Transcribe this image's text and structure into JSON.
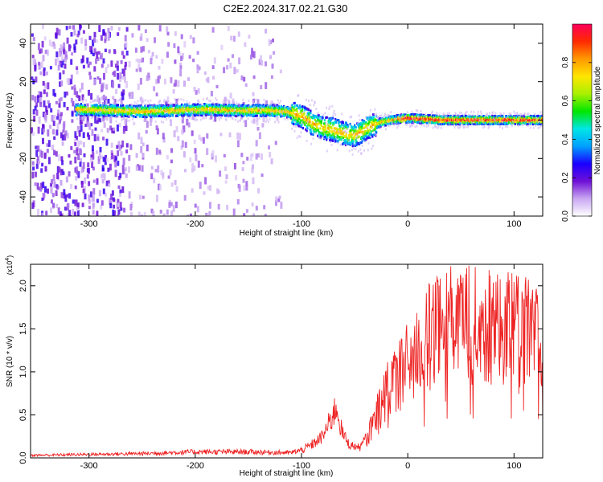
{
  "page_title": "C2E2.2024.317.02.21.G30",
  "chart_data": [
    {
      "type": "heatmap",
      "title": "C2E2.2024.317.02.21.G30",
      "xlabel": "Height of straight line (km)",
      "ylabel": "Frequency (Hz)",
      "xlim": [
        -355,
        127
      ],
      "ylim": [
        -50,
        50
      ],
      "x_ticks": [
        -300,
        -200,
        -100,
        0,
        100
      ],
      "y_ticks": [
        -40,
        -20,
        0,
        20,
        40
      ],
      "grid": false,
      "colorbar": {
        "label": "Normalized spectral amplitude",
        "range": [
          0,
          1
        ],
        "ticks": [
          "0.0",
          "0.2",
          "0.4",
          "0.6",
          "0.8"
        ],
        "colors": [
          "#ffffff",
          "#c9a7f2",
          "#6e0fd6",
          "#1a00ff",
          "#00a0ff",
          "#00e6e6",
          "#00e600",
          "#a8f000",
          "#ffe600",
          "#ff9a00",
          "#ff2a00",
          "#ff005a"
        ]
      },
      "ridge": [
        {
          "x": -313,
          "y": 5.5
        },
        {
          "x": -280,
          "y": 5
        },
        {
          "x": -250,
          "y": 4.5
        },
        {
          "x": -220,
          "y": 5
        },
        {
          "x": -190,
          "y": 5.5
        },
        {
          "x": -160,
          "y": 5
        },
        {
          "x": -130,
          "y": 5
        },
        {
          "x": -115,
          "y": 4.5
        },
        {
          "x": -100,
          "y": 2
        },
        {
          "x": -90,
          "y": -2
        },
        {
          "x": -80,
          "y": -4
        },
        {
          "x": -70,
          "y": -5
        },
        {
          "x": -60,
          "y": -7
        },
        {
          "x": -50,
          "y": -8
        },
        {
          "x": -42,
          "y": -5
        },
        {
          "x": -35,
          "y": -3
        },
        {
          "x": -25,
          "y": -1
        },
        {
          "x": -10,
          "y": 0.5
        },
        {
          "x": 0,
          "y": 1
        },
        {
          "x": 30,
          "y": 0
        },
        {
          "x": 60,
          "y": 0
        },
        {
          "x": 100,
          "y": 0
        },
        {
          "x": 127,
          "y": 0
        }
      ],
      "noise_region_x": [
        -355,
        -120
      ]
    },
    {
      "type": "line",
      "xlabel": "Height of straight line (km)",
      "ylabel": "SNR (10 * v/v)",
      "y_multiplier": "(x10",
      "y_multiplier_exp": "4",
      "xlim": [
        -355,
        127
      ],
      "ylim": [
        0,
        22500
      ],
      "x_ticks": [
        -300,
        -200,
        -100,
        0,
        100
      ],
      "y_ticks": [
        "0.0",
        "0.5",
        "1.0",
        "1.5",
        "2.0"
      ],
      "grid": false,
      "color": "#ee2222",
      "envelope": [
        {
          "x": -355,
          "y": 300
        },
        {
          "x": -250,
          "y": 500
        },
        {
          "x": -200,
          "y": 700
        },
        {
          "x": -150,
          "y": 700
        },
        {
          "x": -110,
          "y": 600
        },
        {
          "x": -100,
          "y": 900
        },
        {
          "x": -90,
          "y": 1500
        },
        {
          "x": -80,
          "y": 2500
        },
        {
          "x": -72,
          "y": 4500
        },
        {
          "x": -67,
          "y": 6000
        },
        {
          "x": -62,
          "y": 3000
        },
        {
          "x": -55,
          "y": 1500
        },
        {
          "x": -45,
          "y": 1200
        },
        {
          "x": -38,
          "y": 2500
        },
        {
          "x": -30,
          "y": 5000
        },
        {
          "x": -20,
          "y": 7500
        },
        {
          "x": -10,
          "y": 9500
        },
        {
          "x": 0,
          "y": 11000
        },
        {
          "x": 10,
          "y": 12500
        },
        {
          "x": 20,
          "y": 14000
        },
        {
          "x": 30,
          "y": 15000
        },
        {
          "x": 40,
          "y": 15500
        },
        {
          "x": 60,
          "y": 15500
        },
        {
          "x": 80,
          "y": 15000
        },
        {
          "x": 100,
          "y": 15000
        },
        {
          "x": 115,
          "y": 14500
        },
        {
          "x": 127,
          "y": 13000
        }
      ]
    }
  ]
}
